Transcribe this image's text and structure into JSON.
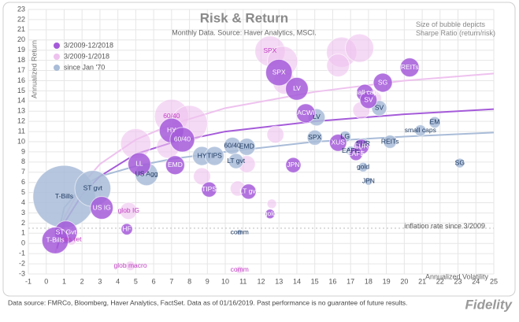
{
  "chart_data": {
    "type": "bubble",
    "title": "Risk & Return",
    "subtitle": "Monthly Data.  Source: Haver Analytics, MSCI.",
    "size_note": "Size of bubble depicts Sharpe Ratio (return/risk)",
    "x_label": "Annualized Volatility",
    "y_label": "Annualized Return",
    "annotation": "inflation rate since 3/2009",
    "inflation_rate": 1.5,
    "footer": "Data source: FMRCo, Bloomberg, Haver Analytics, FactSet.  Data as of 01/16/2019. Past performance is no guarantee of future results.",
    "logo": "Fidelity",
    "grid": true,
    "legend": "upper left",
    "xlim": [
      -1,
      25
    ],
    "xticks": [
      -1,
      0,
      1,
      2,
      3,
      4,
      5,
      6,
      7,
      8,
      9,
      10,
      11,
      12,
      13,
      14,
      15,
      16,
      17,
      18,
      19,
      20,
      21,
      22,
      23,
      24,
      25
    ],
    "ylim": [
      -3,
      23
    ],
    "yticks": [
      -3,
      -2,
      -1,
      0,
      1,
      2,
      3,
      4,
      5,
      6,
      7,
      8,
      9,
      10,
      11,
      12,
      13,
      14,
      15,
      16,
      17,
      18,
      19,
      20,
      21,
      22,
      23
    ],
    "series": [
      {
        "name": "3/2009-1/2018",
        "color": "#eec2ee",
        "label_color": "#c23fc4",
        "labels": [
          "SPX",
          "60/40",
          "glob IG",
          "abs ret",
          "glob macro",
          "comm",
          null,
          null,
          null,
          null,
          null,
          null,
          null,
          null,
          null,
          null,
          null,
          null,
          null,
          null,
          null
        ],
        "x": [
          12.5,
          7,
          4.6,
          1.4,
          4.7,
          10.8,
          5,
          6.8,
          8,
          13.2,
          16.5,
          17.5,
          16.3,
          13.3,
          12.8,
          17.6,
          18.2,
          10.7,
          8.7,
          11.2,
          12.6
        ],
        "values": [
          18.9,
          12.5,
          3.2,
          0.4,
          -2.2,
          -2.6,
          9.8,
          9.5,
          11.8,
          17.9,
          18.8,
          19.2,
          17.5,
          15.8,
          10.7,
          13.1,
          14.2,
          5.4,
          6.6,
          7.8,
          3.9
        ],
        "sizes": [
          1.6,
          1.8,
          0.9,
          0.6,
          0.5,
          0.4,
          1.6,
          1.2,
          1.9,
          1.6,
          1.6,
          1.5,
          1.2,
          1.2,
          0.9,
          0.9,
          1.0,
          0.8,
          0.9,
          0.9,
          0.5
        ],
        "trend": {
          "x": [
            0.5,
            1,
            2,
            3,
            5,
            7,
            10,
            15,
            20,
            25
          ],
          "y": [
            -1,
            2.5,
            5.8,
            7.8,
            10.2,
            11.7,
            13.3,
            14.9,
            16,
            16.7
          ]
        }
      },
      {
        "name": "since Jan '70",
        "color": "#a9bcd8",
        "label_color": "#1f3b63",
        "labels": [
          "T-Bills",
          "ST gvt",
          "US Agg",
          "HY",
          "TIPS",
          "60/40",
          "EMD",
          "LT gvt",
          "LV",
          "SPX",
          "LG",
          "EUR",
          "EAFE",
          "REITs",
          "gold",
          "JPN",
          "SV",
          "small caps",
          "EM",
          "SG",
          "comm"
        ],
        "x": [
          1,
          2.6,
          5.6,
          8.7,
          9.4,
          10.4,
          11.2,
          10.6,
          15.1,
          15,
          16.7,
          17.7,
          17,
          19.2,
          17.7,
          18,
          18.6,
          20.9,
          21.7,
          23.1,
          10.8
        ],
        "values": [
          4.6,
          5.4,
          6.8,
          8.6,
          8.6,
          9.6,
          9.5,
          8.1,
          12.4,
          10.4,
          10.5,
          9.8,
          9.1,
          10,
          7.5,
          6.1,
          13.3,
          11.1,
          11.9,
          7.9,
          1.1
        ],
        "sizes": [
          3.3,
          1.9,
          1.2,
          1.0,
          1.0,
          0.9,
          0.9,
          0.8,
          0.9,
          0.8,
          0.6,
          0.6,
          0.5,
          0.7,
          0.5,
          0.4,
          0.8,
          0.6,
          0.6,
          0.5,
          0.3
        ],
        "trend": {
          "x": [
            0.8,
            1,
            2,
            3,
            5,
            7,
            10,
            15,
            20,
            25
          ],
          "y": [
            2,
            3.5,
            5.6,
            6.6,
            7.6,
            8.3,
            9,
            10,
            10.5,
            10.9
          ]
        }
      },
      {
        "name": "3/2009-12/2018",
        "color": "#a55bd9",
        "label_color": "#ffffff",
        "labels": [
          "SPX",
          "LV",
          "ACWI",
          "REITs",
          "small caps",
          "SV",
          "SG",
          "XUS",
          "EUR",
          "EAFE",
          "HY",
          "60/40",
          "LL",
          "EMD",
          "US IG",
          "HF",
          "ST Gvt",
          "T-Bills",
          "TIPS",
          "LT gvt",
          "JPN",
          "gold"
        ],
        "x": [
          13,
          14,
          14.5,
          20.3,
          17.8,
          18,
          18.8,
          16.3,
          17.6,
          17.3,
          7,
          7.6,
          5.2,
          7.2,
          3.1,
          4.5,
          1.1,
          0.5,
          9.1,
          11.3,
          13.8,
          12.5
        ],
        "values": [
          16.8,
          15.2,
          12.8,
          17.3,
          14.8,
          14.1,
          15.8,
          9.9,
          9.5,
          8.8,
          11.1,
          10.2,
          7.8,
          7.7,
          3.5,
          1.4,
          1.1,
          0.3,
          5.3,
          5.1,
          7.7,
          2.9
        ],
        "sizes": [
          1.4,
          1.2,
          1.0,
          1.0,
          0.9,
          0.9,
          1.0,
          0.9,
          0.8,
          0.7,
          1.3,
          1.3,
          1.2,
          1.0,
          1.2,
          0.6,
          1.2,
          1.4,
          0.8,
          0.8,
          0.8,
          0.5
        ],
        "trend": {
          "x": [
            0.6,
            1,
            2,
            3,
            5,
            7,
            10,
            15,
            20,
            25
          ],
          "y": [
            -0.5,
            2,
            4.8,
            6.6,
            8.8,
            9.9,
            11,
            12,
            12.7,
            13.2
          ]
        }
      }
    ]
  }
}
